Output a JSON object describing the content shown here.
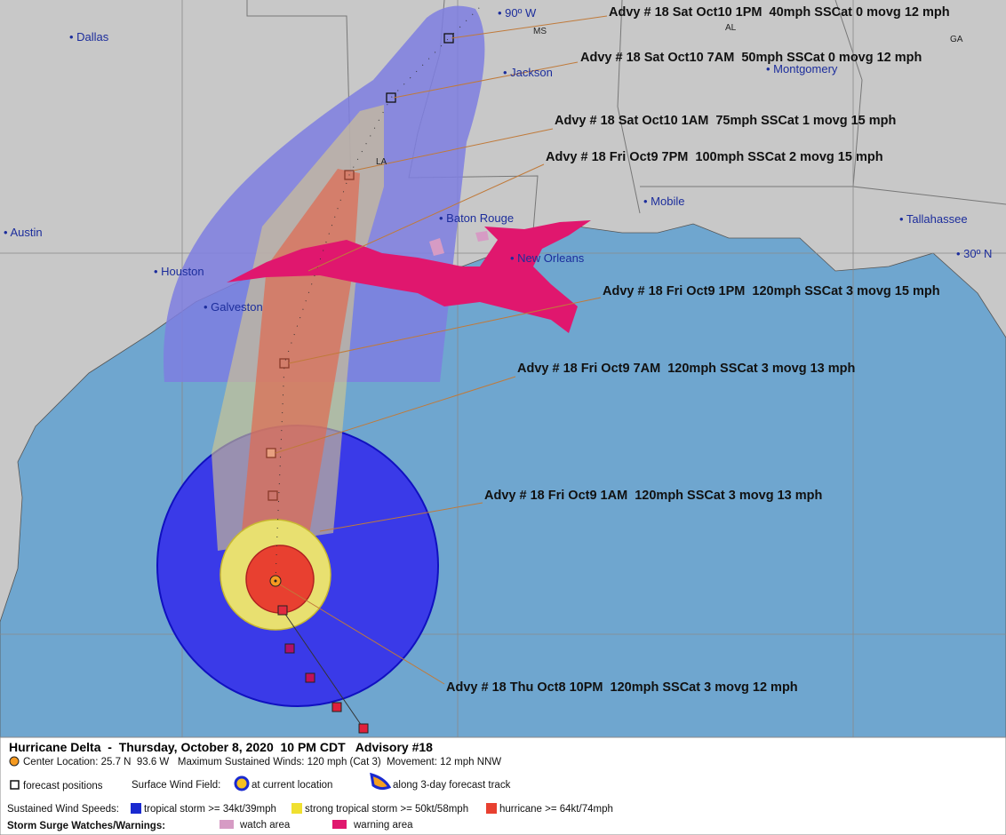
{
  "map": {
    "grid_labels": [
      "90º W",
      "30º N"
    ],
    "states": [
      "MS",
      "AL",
      "GA",
      "LA"
    ],
    "cities": [
      "Dallas",
      "Jackson",
      "Montgomery",
      "Austin",
      "Baton Rouge",
      "Mobile",
      "Tallahassee",
      "New Orleans",
      "Houston",
      "Galveston"
    ],
    "advisories": [
      "Advy # 18 Sat Oct10 1PM  40mph SSCat 0 movg 12 mph",
      "Advy # 18 Sat Oct10 7AM  50mph SSCat 0 movg 12 mph",
      "Advy # 18 Sat Oct10 1AM  75mph SSCat 1 movg 15 mph",
      "Advy # 18 Fri Oct9 7PM  100mph SSCat 2 movg 15 mph",
      "Advy # 18 Fri Oct9 1PM  120mph SSCat 3 movg 15 mph",
      "Advy # 18 Fri Oct9 7AM  120mph SSCat 3 movg 13 mph",
      "Advy # 18 Fri Oct9 1AM  120mph SSCat 3 movg 13 mph",
      "Advy # 18 Thu Oct8 10PM  120mph SSCat 3 movg 12 mph"
    ]
  },
  "legend": {
    "title": "Hurricane Delta  -  Thursday, October 8, 2020  10 PM CDT   Advisory #18",
    "info": "Center Location: 25.7 N  93.6 W   Maximum Sustained Winds: 120 mph (Cat 3)  Movement: 12 mph NNW",
    "forecast_positions": "forecast positions",
    "wind_field": "Surface Wind Field:",
    "current_location": "at current location",
    "forecast_track": "along 3-day forecast track",
    "wind_speeds": "Sustained Wind Speeds:",
    "tropical_storm": "tropical storm >= 34kt/39mph",
    "strong_tropical_storm": "strong tropical storm >= 50kt/58mph",
    "hurricane": "hurricane >= 64kt/74mph",
    "surge": "Storm Surge Watches/Warnings:",
    "watch": "watch area",
    "warning": "warning area"
  }
}
